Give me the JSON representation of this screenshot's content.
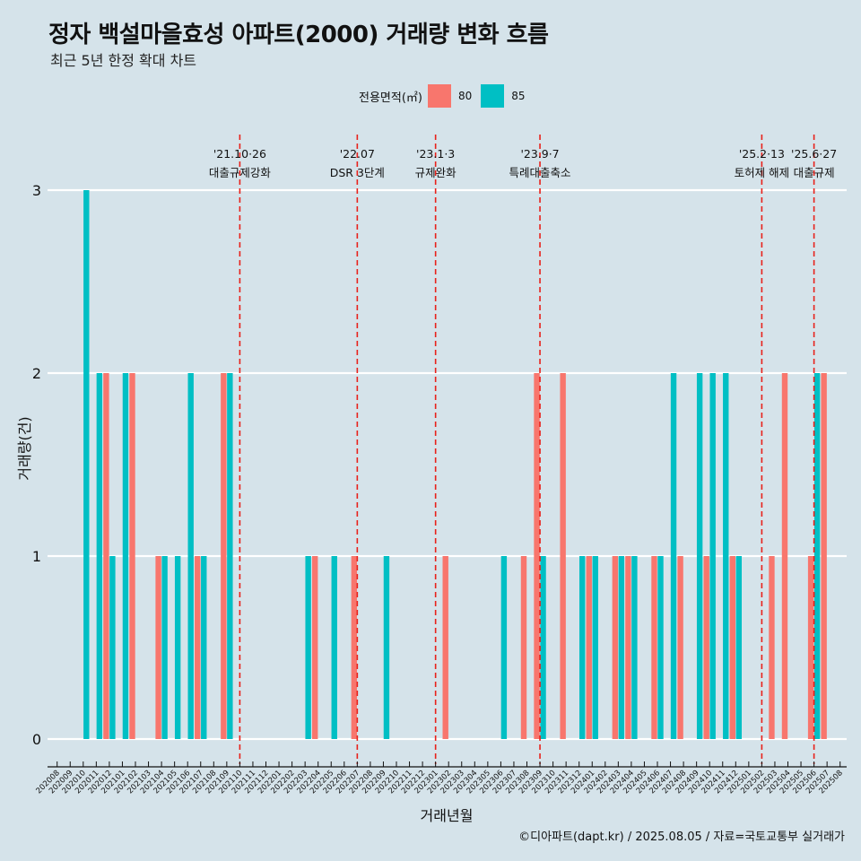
{
  "title": "정자 백설마을효성 아파트(2000) 거래량 변화 흐름",
  "subtitle": "최근 5년 한정 확대 차트",
  "caption": "©디아파트(dapt.kr) / 2025.08.05 / 자료=국토교통부 실거래가",
  "legend": {
    "title": "전용면적(㎡)",
    "items": [
      {
        "label": "80",
        "color": "#F8766D"
      },
      {
        "label": "85",
        "color": "#00BFC4"
      }
    ]
  },
  "chart_data": {
    "type": "bar",
    "xlabel": "거래년월",
    "ylabel": "거래량(건)",
    "ylim": [
      0,
      3
    ],
    "yticks": [
      0,
      1,
      2,
      3
    ],
    "grid": true,
    "legend_position": "top",
    "categories": [
      "202008",
      "202009",
      "202010",
      "202011",
      "202012",
      "202101",
      "202102",
      "202103",
      "202104",
      "202105",
      "202106",
      "202107",
      "202108",
      "202109",
      "202110",
      "202111",
      "202112",
      "202201",
      "202202",
      "202203",
      "202204",
      "202205",
      "202206",
      "202207",
      "202208",
      "202209",
      "202210",
      "202211",
      "202212",
      "202301",
      "202302",
      "202303",
      "202304",
      "202305",
      "202306",
      "202307",
      "202308",
      "202309",
      "202310",
      "202311",
      "202312",
      "202401",
      "202402",
      "202403",
      "202404",
      "202405",
      "202406",
      "202407",
      "202408",
      "202409",
      "202410",
      "202411",
      "202412",
      "202501",
      "202502",
      "202503",
      "202504",
      "202505",
      "202506",
      "202507",
      "202508"
    ],
    "series": [
      {
        "name": "80",
        "color": "#F8766D",
        "values": [
          0,
          0,
          0,
          0,
          2,
          0,
          2,
          0,
          1,
          0,
          0,
          1,
          0,
          2,
          0,
          0,
          0,
          0,
          0,
          0,
          1,
          0,
          0,
          1,
          0,
          0,
          0,
          0,
          0,
          0,
          1,
          0,
          0,
          0,
          0,
          0,
          1,
          2,
          0,
          2,
          0,
          1,
          0,
          1,
          1,
          0,
          1,
          0,
          1,
          0,
          1,
          0,
          1,
          0,
          0,
          1,
          2,
          0,
          1,
          2,
          0
        ]
      },
      {
        "name": "85",
        "color": "#00BFC4",
        "values": [
          0,
          0,
          3,
          2,
          1,
          2,
          0,
          0,
          1,
          1,
          2,
          1,
          0,
          2,
          0,
          0,
          0,
          0,
          0,
          1,
          0,
          1,
          0,
          0,
          0,
          1,
          0,
          0,
          0,
          0,
          0,
          0,
          0,
          0,
          1,
          0,
          0,
          1,
          0,
          0,
          1,
          1,
          0,
          1,
          1,
          0,
          1,
          2,
          0,
          2,
          2,
          2,
          1,
          0,
          0,
          0,
          0,
          0,
          2,
          0,
          0
        ]
      }
    ],
    "events": [
      {
        "date": "'21.10·26",
        "label": "대출규제강화",
        "month": "202110"
      },
      {
        "date": "'22.07",
        "label": "DSR 3단계",
        "month": "202207"
      },
      {
        "date": "'23.1·3",
        "label": "규제완화",
        "month": "202301"
      },
      {
        "date": "'23.9·7",
        "label": "특례대출축소",
        "month": "202309"
      },
      {
        "date": "'25.2·13",
        "label": "토허제 해제",
        "month": "202502"
      },
      {
        "date": "'25.6·27",
        "label": "대출규제",
        "month": "202506"
      }
    ]
  }
}
